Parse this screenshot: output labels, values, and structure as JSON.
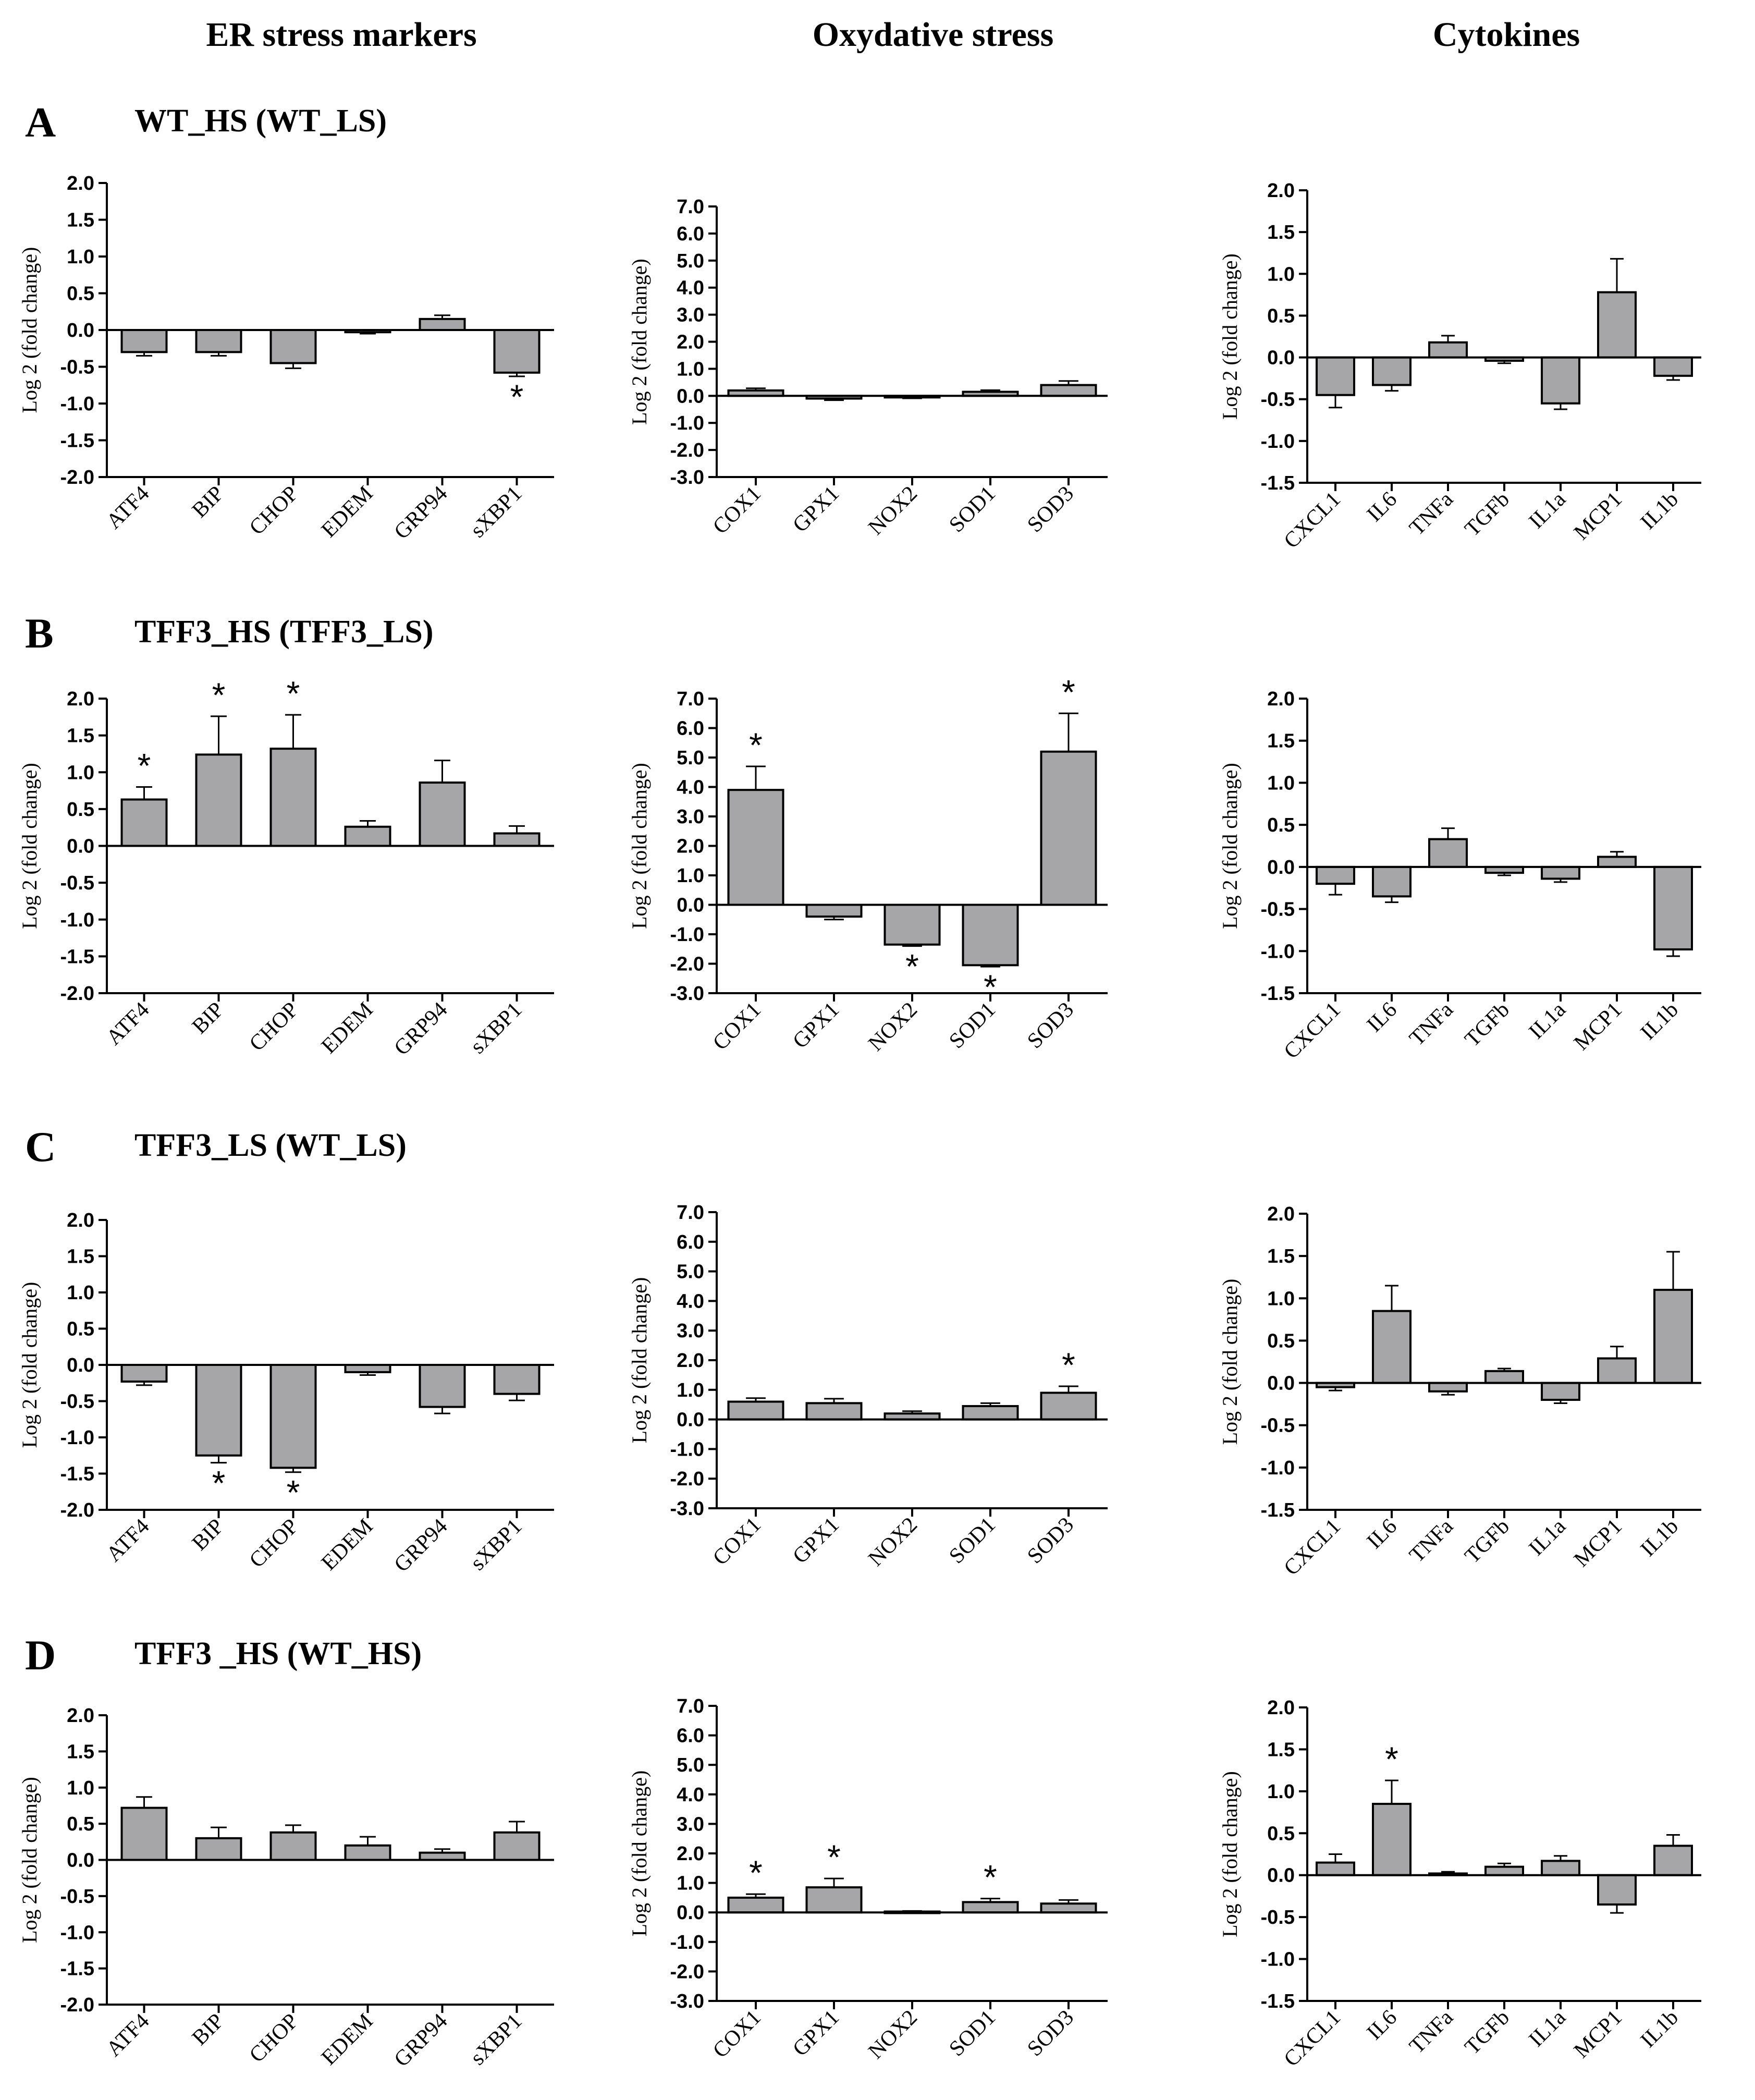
{
  "column_headers": [
    "ER stress markers",
    "Oxydative stress",
    "Cytokines"
  ],
  "panels": [
    {
      "letter": "A",
      "title": "WT_HS (WT_LS)"
    },
    {
      "letter": "B",
      "title": "TFF3_HS (TFF3_LS)"
    },
    {
      "letter": "C",
      "title": "TFF3_LS (WT_LS)"
    },
    {
      "letter": "D",
      "title": "TFF3 _HS (WT_HS)"
    }
  ],
  "colors": {
    "bar_fill": "#a6a6a8",
    "stroke": "#000000",
    "background": "#ffffff"
  },
  "chart_data": [
    {
      "id": "A-er",
      "panel": "A",
      "column": "ER stress markers",
      "type": "bar",
      "ylabel": "Log 2 (fold change)",
      "ylim": [
        -2,
        2
      ],
      "yticks": [
        "2.0",
        "1.5",
        "1.0",
        "0.5",
        "0.0",
        "-0.5",
        "-1.0",
        "-1.5",
        "-2.0"
      ],
      "categories": [
        "ATF4",
        "BIP",
        "CHOP",
        "EDEM",
        "GRP94",
        "sXBP1"
      ],
      "values": [
        -0.3,
        -0.3,
        -0.45,
        -0.03,
        0.15,
        -0.58
      ],
      "errors": [
        0.05,
        0.05,
        0.07,
        0.02,
        0.05,
        0.05
      ],
      "significant": [
        false,
        false,
        false,
        false,
        false,
        true
      ]
    },
    {
      "id": "A-ox",
      "panel": "A",
      "column": "Oxydative stress",
      "type": "bar",
      "ylabel": "Log 2 (fold change)",
      "ylim": [
        -3,
        7
      ],
      "yticks": [
        "7.0",
        "6.0",
        "5.0",
        "4.0",
        "3.0",
        "2.0",
        "1.0",
        "0.0",
        "-1.0",
        "-2.0",
        "-3.0"
      ],
      "categories": [
        "COX1",
        "GPX1",
        "NOX2",
        "SOD1",
        "SOD3"
      ],
      "values": [
        0.2,
        -0.1,
        -0.05,
        0.15,
        0.4
      ],
      "errors": [
        0.08,
        0.06,
        0.04,
        0.06,
        0.15
      ],
      "significant": [
        false,
        false,
        false,
        false,
        false
      ]
    },
    {
      "id": "A-cy",
      "panel": "A",
      "column": "Cytokines",
      "type": "bar",
      "ylabel": "Log 2 (fold change)",
      "ylim": [
        -1.5,
        2
      ],
      "yticks": [
        "2.0",
        "1.5",
        "1.0",
        "0.5",
        "0.0",
        "-0.5",
        "-1.0",
        "-1.5"
      ],
      "categories": [
        "CXCL1",
        "IL6",
        "TNFa",
        "TGFb",
        "IL1a",
        "MCP1",
        "IL1b"
      ],
      "values": [
        -0.45,
        -0.33,
        0.18,
        -0.04,
        -0.55,
        0.78,
        -0.22
      ],
      "errors": [
        0.15,
        0.07,
        0.08,
        0.03,
        0.07,
        0.4,
        0.05
      ],
      "significant": [
        false,
        false,
        false,
        false,
        false,
        false,
        false
      ]
    },
    {
      "id": "B-er",
      "panel": "B",
      "column": "ER stress markers",
      "type": "bar",
      "ylabel": "Log 2 (fold change)",
      "ylim": [
        -2,
        2
      ],
      "yticks": [
        "2.0",
        "1.5",
        "1.0",
        "0.5",
        "0.0",
        "-0.5",
        "-1.0",
        "-1.5",
        "-2.0"
      ],
      "categories": [
        "ATF4",
        "BIP",
        "CHOP",
        "EDEM",
        "GRP94",
        "sXBP1"
      ],
      "values": [
        0.63,
        1.24,
        1.32,
        0.26,
        0.86,
        0.17
      ],
      "errors": [
        0.17,
        0.52,
        0.46,
        0.08,
        0.3,
        0.1
      ],
      "significant": [
        true,
        true,
        true,
        false,
        false,
        false
      ]
    },
    {
      "id": "B-ox",
      "panel": "B",
      "column": "Oxydative stress",
      "type": "bar",
      "ylabel": "Log 2 (fold change)",
      "ylim": [
        -3,
        7
      ],
      "yticks": [
        "7.0",
        "6.0",
        "5.0",
        "4.0",
        "3.0",
        "2.0",
        "1.0",
        "0.0",
        "-1.0",
        "-2.0",
        "-3.0"
      ],
      "categories": [
        "COX1",
        "GPX1",
        "NOX2",
        "SOD1",
        "SOD3"
      ],
      "values": [
        3.9,
        -0.4,
        -1.35,
        -2.05,
        5.2
      ],
      "errors": [
        0.8,
        0.1,
        0.05,
        0.05,
        1.3
      ],
      "significant": [
        true,
        false,
        true,
        true,
        true
      ]
    },
    {
      "id": "B-cy",
      "panel": "B",
      "column": "Cytokines",
      "type": "bar",
      "ylabel": "Log 2 (fold change)",
      "ylim": [
        -1.5,
        2
      ],
      "yticks": [
        "2.0",
        "1.5",
        "1.0",
        "0.5",
        "0.0",
        "-0.5",
        "-1.0",
        "-1.5"
      ],
      "categories": [
        "CXCL1",
        "IL6",
        "TNFa",
        "TGFb",
        "IL1a",
        "MCP1",
        "IL1b"
      ],
      "values": [
        -0.2,
        -0.35,
        0.33,
        -0.07,
        -0.14,
        0.12,
        -0.98
      ],
      "errors": [
        0.13,
        0.07,
        0.13,
        0.03,
        0.04,
        0.06,
        0.08
      ],
      "significant": [
        false,
        false,
        false,
        false,
        false,
        false,
        false
      ]
    },
    {
      "id": "C-er",
      "panel": "C",
      "column": "ER stress markers",
      "type": "bar",
      "ylabel": "Log 2 (fold change)",
      "ylim": [
        -2,
        2
      ],
      "yticks": [
        "2.0",
        "1.5",
        "1.0",
        "0.5",
        "0.0",
        "-0.5",
        "-1.0",
        "-1.5",
        "-2.0"
      ],
      "categories": [
        "ATF4",
        "BIP",
        "CHOP",
        "EDEM",
        "GRP94",
        "sXBP1"
      ],
      "values": [
        -0.23,
        -1.25,
        -1.42,
        -0.1,
        -0.58,
        -0.4
      ],
      "errors": [
        0.05,
        0.1,
        0.06,
        0.04,
        0.09,
        0.09
      ],
      "significant": [
        false,
        true,
        true,
        false,
        false,
        false
      ]
    },
    {
      "id": "C-ox",
      "panel": "C",
      "column": "Oxydative stress",
      "type": "bar",
      "ylabel": "Log 2 (fold change)",
      "ylim": [
        -3,
        7
      ],
      "yticks": [
        "7.0",
        "6.0",
        "5.0",
        "4.0",
        "3.0",
        "2.0",
        "1.0",
        "0.0",
        "-1.0",
        "-2.0",
        "-3.0"
      ],
      "categories": [
        "COX1",
        "GPX1",
        "NOX2",
        "SOD1",
        "SOD3"
      ],
      "values": [
        0.6,
        0.55,
        0.2,
        0.45,
        0.9
      ],
      "errors": [
        0.12,
        0.15,
        0.08,
        0.1,
        0.22
      ],
      "significant": [
        false,
        false,
        false,
        false,
        true
      ]
    },
    {
      "id": "C-cy",
      "panel": "C",
      "column": "Cytokines",
      "type": "bar",
      "ylabel": "Log 2 (fold change)",
      "ylim": [
        -1.5,
        2
      ],
      "yticks": [
        "2.0",
        "1.5",
        "1.0",
        "0.5",
        "0.0",
        "-0.5",
        "-1.0",
        "-1.5"
      ],
      "categories": [
        "CXCL1",
        "IL6",
        "TNFa",
        "TGFb",
        "IL1a",
        "MCP1",
        "IL1b"
      ],
      "values": [
        -0.05,
        0.85,
        -0.1,
        0.14,
        -0.2,
        0.29,
        1.1
      ],
      "errors": [
        0.04,
        0.3,
        0.04,
        0.03,
        0.04,
        0.14,
        0.45
      ],
      "significant": [
        false,
        false,
        false,
        false,
        false,
        false,
        false
      ]
    },
    {
      "id": "D-er",
      "panel": "D",
      "column": "ER stress markers",
      "type": "bar",
      "ylabel": "Log 2 (fold change)",
      "ylim": [
        -2,
        2
      ],
      "yticks": [
        "2.0",
        "1.5",
        "1.0",
        "0.5",
        "0.0",
        "-0.5",
        "-1.0",
        "-1.5",
        "-2.0"
      ],
      "categories": [
        "ATF4",
        "BIP",
        "CHOP",
        "EDEM",
        "GRP94",
        "sXBP1"
      ],
      "values": [
        0.72,
        0.3,
        0.38,
        0.2,
        0.1,
        0.38
      ],
      "errors": [
        0.15,
        0.15,
        0.1,
        0.12,
        0.05,
        0.15
      ],
      "significant": [
        false,
        false,
        false,
        false,
        false,
        false
      ]
    },
    {
      "id": "D-ox",
      "panel": "D",
      "column": "Oxydative stress",
      "type": "bar",
      "ylabel": "Log 2 (fold change)",
      "ylim": [
        -3,
        7
      ],
      "yticks": [
        "7.0",
        "6.0",
        "5.0",
        "4.0",
        "3.0",
        "2.0",
        "1.0",
        "0.0",
        "-1.0",
        "-2.0",
        "-3.0"
      ],
      "categories": [
        "COX1",
        "GPX1",
        "NOX2",
        "SOD1",
        "SOD3"
      ],
      "values": [
        0.5,
        0.85,
        0.03,
        0.35,
        0.3
      ],
      "errors": [
        0.12,
        0.3,
        0.02,
        0.12,
        0.12
      ],
      "significant": [
        true,
        true,
        false,
        true,
        false
      ]
    },
    {
      "id": "D-cy",
      "panel": "D",
      "column": "Cytokines",
      "type": "bar",
      "ylabel": "Log 2 (fold change)",
      "ylim": [
        -1.5,
        2
      ],
      "yticks": [
        "2.0",
        "1.5",
        "1.0",
        "0.5",
        "0.0",
        "-0.5",
        "-1.0",
        "-1.5"
      ],
      "categories": [
        "CXCL1",
        "IL6",
        "TNFa",
        "TGFb",
        "IL1a",
        "MCP1",
        "IL1b"
      ],
      "values": [
        0.15,
        0.85,
        0.02,
        0.1,
        0.17,
        -0.35,
        0.35
      ],
      "errors": [
        0.1,
        0.28,
        0.02,
        0.04,
        0.06,
        0.1,
        0.13
      ],
      "significant": [
        false,
        true,
        false,
        false,
        false,
        false,
        false
      ]
    }
  ]
}
